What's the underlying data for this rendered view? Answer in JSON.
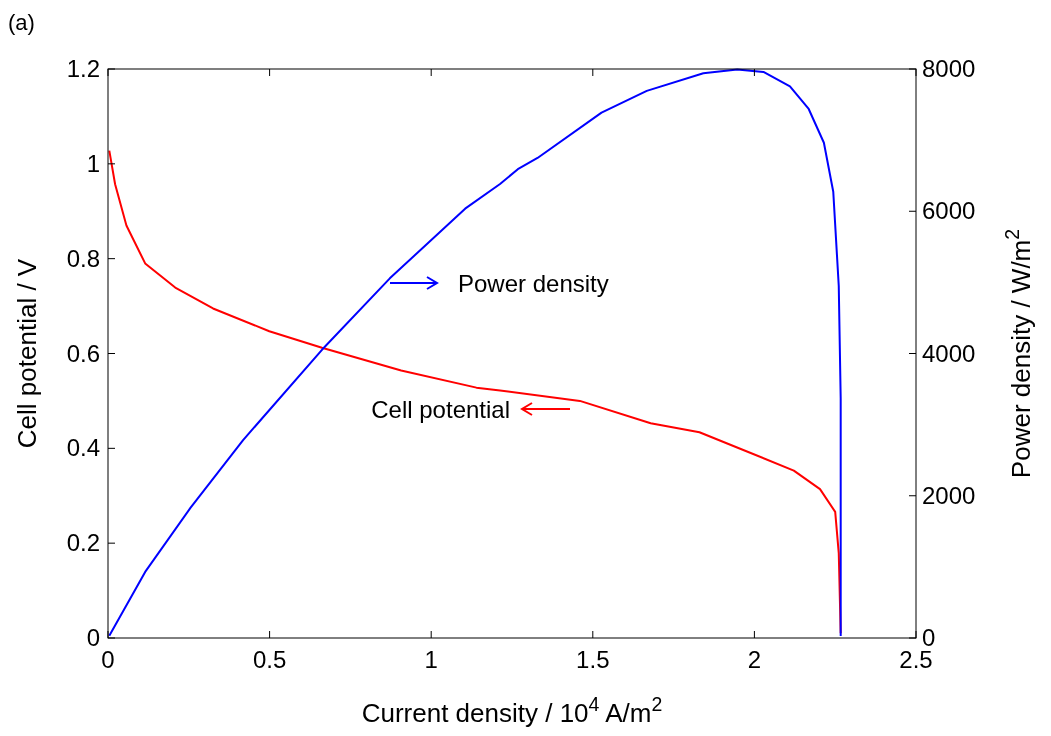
{
  "chart_data": {
    "type": "line",
    "xlabel": "Current density  /  10$^{4}$ A/m$^{2}$",
    "ylabel": "Cell potential  /  V",
    "y2label": "Power density  /  W/m$^{2}$",
    "annotations": [
      "(a)",
      "Power density",
      "Cell potential"
    ],
    "xlim": [
      0,
      2.5
    ],
    "xticks": [
      0,
      0.5,
      1,
      1.5,
      2,
      2.5
    ],
    "ylim": [
      0,
      1.2
    ],
    "yticks": [
      0,
      0.2,
      0.4,
      0.6,
      0.8,
      1,
      1.2
    ],
    "y2lim": [
      0,
      8000
    ],
    "y2ticks": [
      0,
      2000,
      4000,
      6000,
      8000
    ],
    "grid": false,
    "marker": "none",
    "line_style": "solid",
    "series": [
      {
        "color": "#ff0000",
        "x": [
          0.004,
          0.022,
          0.057,
          0.115,
          0.208,
          0.325,
          0.499,
          0.662,
          0.907,
          1.14,
          1.213,
          1.46,
          1.679,
          1.83,
          1.935,
          2.122,
          2.203,
          2.25,
          2.261,
          2.267
        ],
        "values": [
          1.028,
          0.957,
          0.87,
          0.79,
          0.739,
          0.695,
          0.647,
          0.612,
          0.564,
          0.528,
          0.522,
          0.5,
          0.453,
          0.434,
          0.405,
          0.353,
          0.314,
          0.266,
          0.179,
          0.01
        ]
      },
      {
        "color": "#0000ff",
        "axis": "y2",
        "x": [
          0.004,
          0.115,
          0.255,
          0.418,
          0.662,
          0.872,
          1.105,
          1.213,
          1.268,
          1.329,
          1.527,
          1.667,
          1.842,
          1.947,
          2.028,
          2.11,
          2.168,
          2.215,
          2.244,
          2.261,
          2.267,
          2.267
        ],
        "values": [
          31,
          929,
          1829,
          2782,
          4052,
          5057,
          6036,
          6383,
          6592,
          6749,
          7386,
          7692,
          7941,
          7994,
          7958,
          7756,
          7438,
          6963,
          6274,
          4951,
          3363,
          28
        ]
      }
    ]
  }
}
